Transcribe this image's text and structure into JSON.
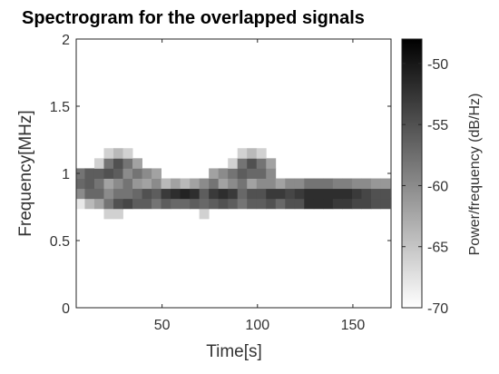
{
  "chart_data": {
    "type": "heatmap",
    "title": "Spectrogram for the overlapped signals",
    "xlabel": "Time[s]",
    "ylabel": "Frequency[MHz]",
    "xlim": [
      5,
      170
    ],
    "ylim": [
      0,
      2
    ],
    "x_ticks": [
      50,
      100,
      150
    ],
    "x_tick_labels": [
      "50",
      "100",
      "150"
    ],
    "y_ticks": [
      0,
      0.5,
      1,
      1.5,
      2
    ],
    "y_tick_labels": [
      "0",
      "0.5",
      "1",
      "1.5",
      "2"
    ],
    "colorbar": {
      "label": "Power/frequency (dB/Hz)",
      "range": [
        -70,
        -48
      ],
      "ticks": [
        -70,
        -65,
        -60,
        -55,
        -50
      ],
      "tick_labels": [
        "-70",
        "-65",
        "-60",
        "-55",
        "-50"
      ],
      "colormap": "gray-reversed"
    },
    "time_bins": [
      7,
      12,
      17,
      22,
      27,
      32,
      37,
      42,
      47,
      52,
      57,
      62,
      67,
      72,
      77,
      82,
      87,
      92,
      97,
      102,
      107,
      112,
      117,
      122,
      127,
      132,
      137,
      142,
      147,
      152,
      157,
      162,
      167
    ],
    "frequency_bins": [
      0.7,
      0.775,
      0.85,
      0.925,
      1.0,
      1.075,
      1.15
    ],
    "power_db": [
      [
        -70,
        -70,
        -70,
        -66,
        -66,
        -70,
        -70,
        -70,
        -70,
        -70,
        -70,
        -70,
        -70,
        -66,
        -70,
        -70,
        -70,
        -70,
        -70,
        -70,
        -70,
        -70,
        -70,
        -70,
        -70,
        -70,
        -70,
        -70,
        -70,
        -70,
        -70,
        -70,
        -70
      ],
      [
        -68,
        -64,
        -62,
        -58,
        -55,
        -54,
        -56,
        -56,
        -58,
        -56,
        -57,
        -57,
        -56,
        -57,
        -56,
        -55,
        -56,
        -58,
        -56,
        -56,
        -55,
        -57,
        -55,
        -55,
        -52,
        -52,
        -52,
        -53,
        -53,
        -54,
        -54,
        -55,
        -55
      ],
      [
        -60,
        -57,
        -57,
        -60,
        -58,
        -58,
        -57,
        -55,
        -56,
        -53,
        -52,
        -51,
        -52,
        -56,
        -53,
        -52,
        -53,
        -57,
        -55,
        -55,
        -53,
        -53,
        -54,
        -53,
        -52,
        -52,
        -52,
        -52,
        -52,
        -53,
        -54,
        -55,
        -55
      ],
      [
        -57,
        -56,
        -58,
        -62,
        -60,
        -58,
        -61,
        -62,
        -60,
        -64,
        -62,
        -64,
        -62,
        -60,
        -58,
        -62,
        -60,
        -58,
        -62,
        -60,
        -60,
        -62,
        -60,
        -60,
        -58,
        -58,
        -58,
        -59,
        -59,
        -60,
        -60,
        -61,
        -61
      ],
      [
        -58,
        -56,
        -56,
        -55,
        -56,
        -60,
        -58,
        -60,
        -62,
        -70,
        -70,
        -70,
        -70,
        -70,
        -62,
        -60,
        -58,
        -56,
        -57,
        -57,
        -60,
        -70,
        -70,
        -70,
        -70,
        -70,
        -70,
        -70,
        -70,
        -70,
        -70,
        -70,
        -70
      ],
      [
        -70,
        -70,
        -66,
        -58,
        -55,
        -58,
        -62,
        -70,
        -70,
        -70,
        -70,
        -70,
        -70,
        -70,
        -70,
        -70,
        -66,
        -58,
        -55,
        -58,
        -62,
        -70,
        -70,
        -70,
        -70,
        -70,
        -70,
        -70,
        -70,
        -70,
        -70,
        -70,
        -70
      ],
      [
        -70,
        -70,
        -70,
        -66,
        -64,
        -66,
        -70,
        -70,
        -70,
        -70,
        -70,
        -70,
        -70,
        -70,
        -70,
        -70,
        -70,
        -66,
        -64,
        -66,
        -70,
        -70,
        -70,
        -70,
        -70,
        -70,
        -70,
        -70,
        -70,
        -70,
        -70,
        -70,
        -70
      ]
    ]
  }
}
